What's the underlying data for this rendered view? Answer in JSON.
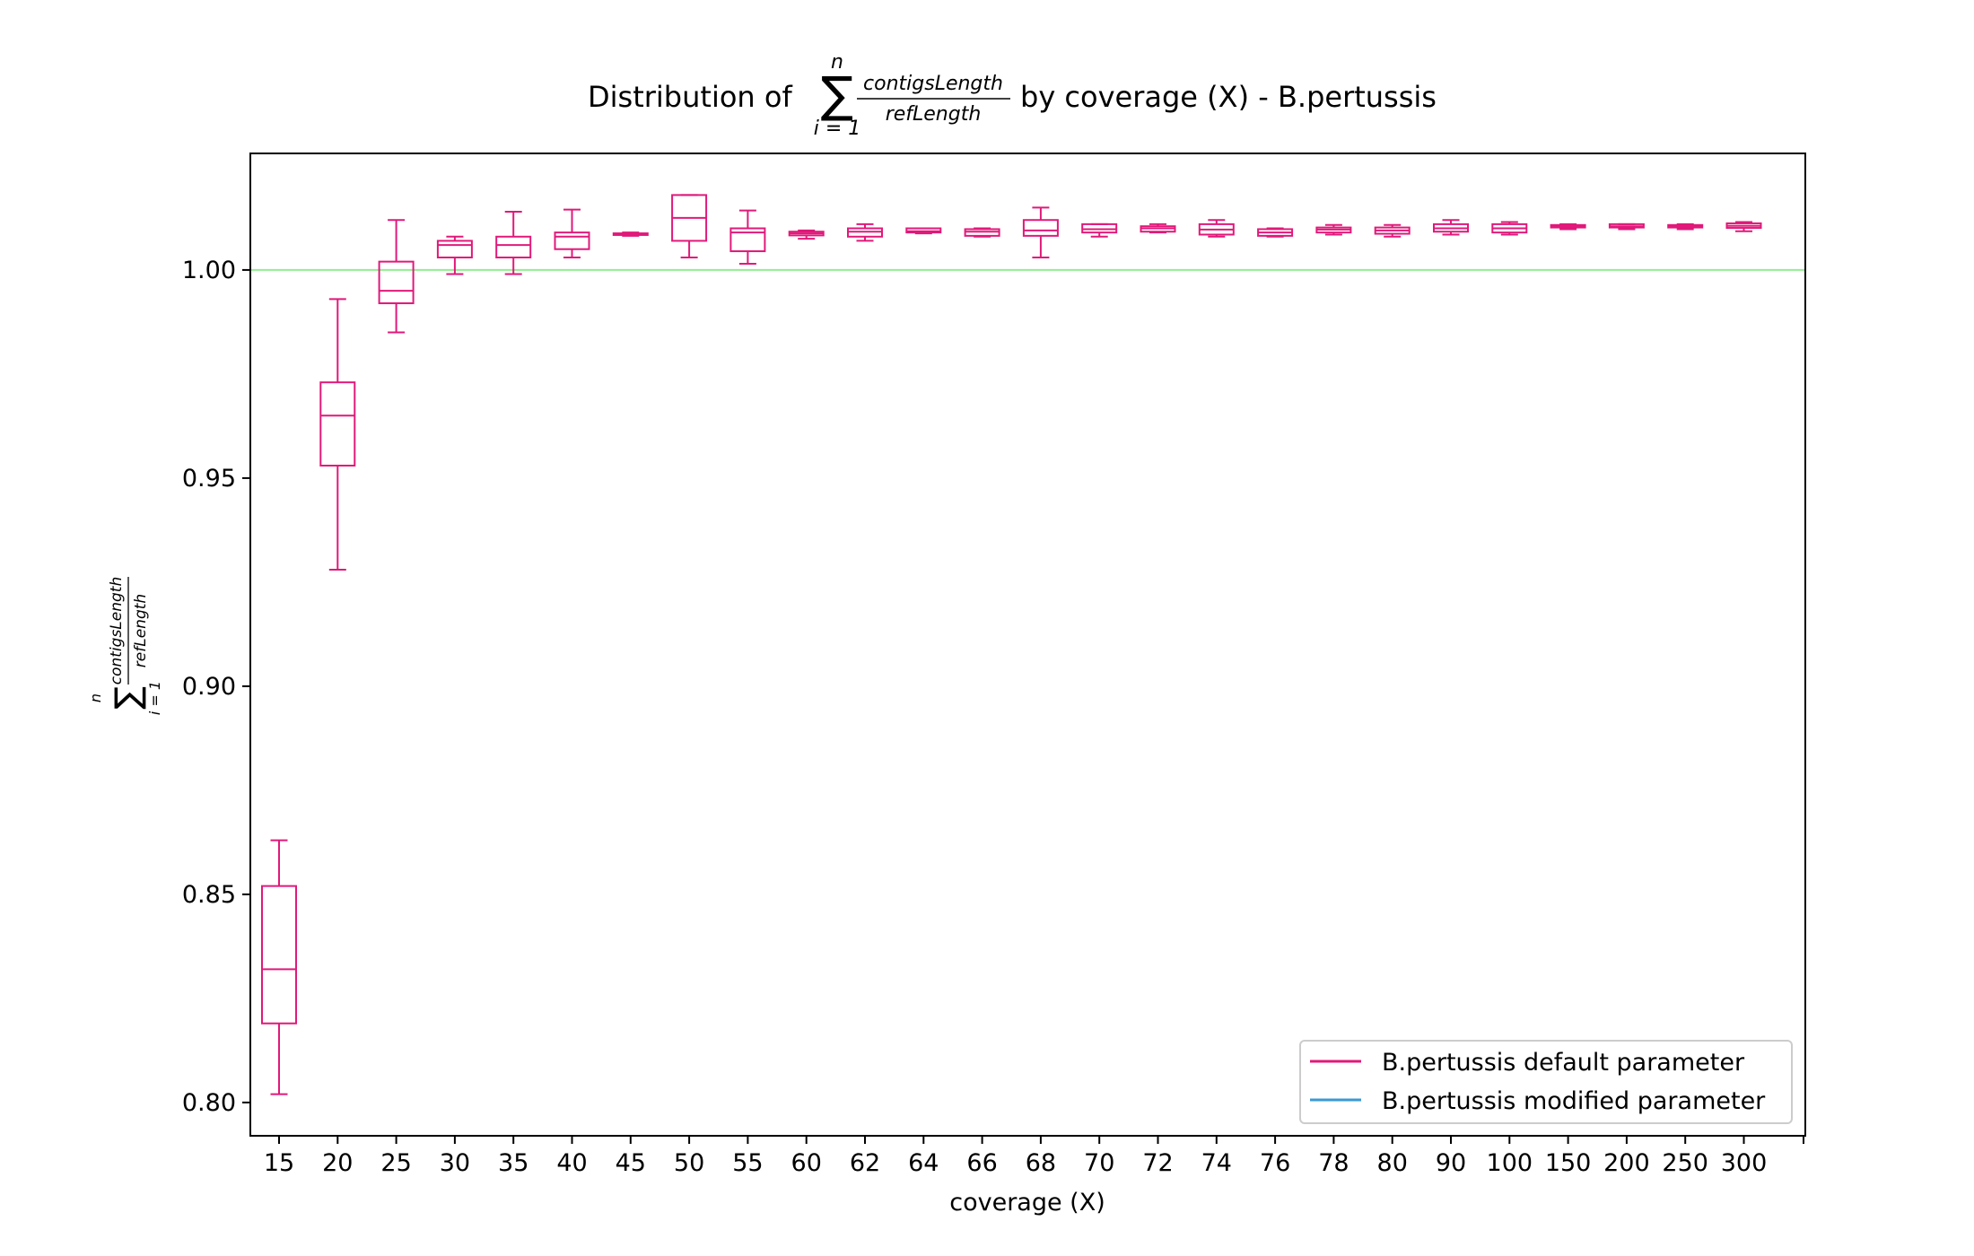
{
  "chart_data": {
    "type": "box",
    "title_prefix": "Distribution of",
    "title_suffix": "by coverage (X) - B.pertussis",
    "math": {
      "sum_upper": "n",
      "sum_lower": "i = 1",
      "numerator": "contigsLength",
      "denominator": "refLength"
    },
    "xlabel": "coverage (X)",
    "ylim": [
      0.792,
      1.028
    ],
    "yticks": [
      0.8,
      0.85,
      0.9,
      0.95,
      1.0
    ],
    "ytick_labels": [
      "0.80",
      "0.85",
      "0.90",
      "0.95",
      "1.00"
    ],
    "reference_line": {
      "y": 1.0,
      "color": "#90ee90"
    },
    "categories": [
      "15",
      "20",
      "25",
      "30",
      "35",
      "40",
      "45",
      "50",
      "55",
      "60",
      "62",
      "64",
      "66",
      "68",
      "70",
      "72",
      "74",
      "76",
      "78",
      "80",
      "90",
      "100",
      "150",
      "200",
      "250",
      "300"
    ],
    "series": [
      {
        "name": "B.pertussis default parameter",
        "color": "#e0197a",
        "boxes": [
          {
            "whislo": 0.802,
            "q1": 0.819,
            "med": 0.832,
            "q3": 0.852,
            "whishi": 0.863
          },
          {
            "whislo": 0.928,
            "q1": 0.953,
            "med": 0.965,
            "q3": 0.973,
            "whishi": 0.993
          },
          {
            "whislo": 0.985,
            "q1": 0.992,
            "med": 0.995,
            "q3": 1.002,
            "whishi": 1.012
          },
          {
            "whislo": 0.999,
            "q1": 1.003,
            "med": 1.006,
            "q3": 1.007,
            "whishi": 1.008
          },
          {
            "whislo": 0.999,
            "q1": 1.003,
            "med": 1.006,
            "q3": 1.008,
            "whishi": 1.014
          },
          {
            "whislo": 1.003,
            "q1": 1.005,
            "med": 1.008,
            "q3": 1.009,
            "whishi": 1.0145
          },
          {
            "whislo": 1.0082,
            "q1": 1.0084,
            "med": 1.0086,
            "q3": 1.0088,
            "whishi": 1.009
          },
          {
            "whislo": 1.003,
            "q1": 1.007,
            "med": 1.0125,
            "q3": 1.018,
            "whishi": 1.018
          },
          {
            "whislo": 1.0015,
            "q1": 1.0045,
            "med": 1.009,
            "q3": 1.01,
            "whishi": 1.0143
          },
          {
            "whislo": 1.0075,
            "q1": 1.0083,
            "med": 1.0088,
            "q3": 1.0092,
            "whishi": 1.0095
          },
          {
            "whislo": 1.007,
            "q1": 1.008,
            "med": 1.0092,
            "q3": 1.01,
            "whishi": 1.011
          },
          {
            "whislo": 1.0088,
            "q1": 1.009,
            "med": 1.0093,
            "q3": 1.01,
            "whishi": 1.01
          },
          {
            "whislo": 1.008,
            "q1": 1.0082,
            "med": 1.0092,
            "q3": 1.0098,
            "whishi": 1.01
          },
          {
            "whislo": 1.003,
            "q1": 1.0082,
            "med": 1.0095,
            "q3": 1.012,
            "whishi": 1.015
          },
          {
            "whislo": 1.008,
            "q1": 1.009,
            "med": 1.0098,
            "q3": 1.011,
            "whishi": 1.011
          },
          {
            "whislo": 1.009,
            "q1": 1.0092,
            "med": 1.01,
            "q3": 1.0105,
            "whishi": 1.011
          },
          {
            "whislo": 1.008,
            "q1": 1.0085,
            "med": 1.0097,
            "q3": 1.011,
            "whishi": 1.012
          },
          {
            "whislo": 1.008,
            "q1": 1.0082,
            "med": 1.009,
            "q3": 1.0098,
            "whishi": 1.01
          },
          {
            "whislo": 1.0085,
            "q1": 1.009,
            "med": 1.0097,
            "q3": 1.0102,
            "whishi": 1.0108
          },
          {
            "whislo": 1.008,
            "q1": 1.0087,
            "med": 1.0095,
            "q3": 1.0102,
            "whishi": 1.0108
          },
          {
            "whislo": 1.0085,
            "q1": 1.0092,
            "med": 1.01,
            "q3": 1.011,
            "whishi": 1.012
          },
          {
            "whislo": 1.0085,
            "q1": 1.009,
            "med": 1.01,
            "q3": 1.011,
            "whishi": 1.0115
          },
          {
            "whislo": 1.0098,
            "q1": 1.0102,
            "med": 1.0105,
            "q3": 1.0108,
            "whishi": 1.011
          },
          {
            "whislo": 1.0098,
            "q1": 1.0102,
            "med": 1.0105,
            "q3": 1.011,
            "whishi": 1.011
          },
          {
            "whislo": 1.0098,
            "q1": 1.0102,
            "med": 1.0105,
            "q3": 1.0108,
            "whishi": 1.011
          },
          {
            "whislo": 1.0093,
            "q1": 1.0101,
            "med": 1.0106,
            "q3": 1.0112,
            "whishi": 1.0115
          }
        ]
      },
      {
        "name": "B.pertussis modified parameter",
        "color": "#3b9ad2",
        "boxes": []
      }
    ],
    "legend_position": "lower-right"
  }
}
